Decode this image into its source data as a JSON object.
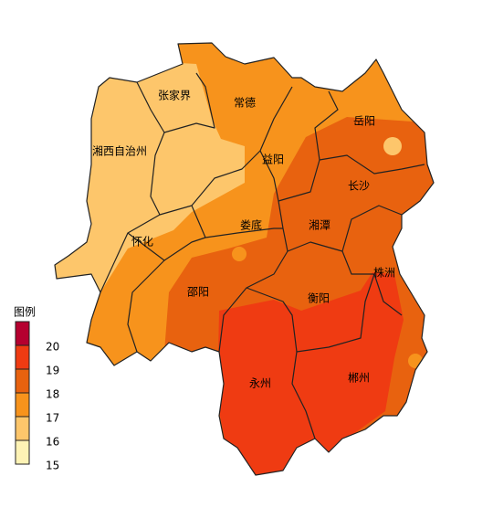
{
  "map": {
    "cities": [
      "张家界",
      "常德",
      "岳阳",
      "湘西自治州",
      "益阳",
      "长沙",
      "娄底",
      "湘潭",
      "怀化",
      "株洲",
      "邵阳",
      "衡阳",
      "永州",
      "郴州"
    ],
    "legend": {
      "title": "图例",
      "ticks": [
        20,
        19,
        18,
        17,
        16,
        15
      ],
      "colors": [
        "#b5002f",
        "#ef3b12",
        "#e8620f",
        "#f7931c",
        "#fdc66b",
        "#fef3b5"
      ]
    }
  }
}
